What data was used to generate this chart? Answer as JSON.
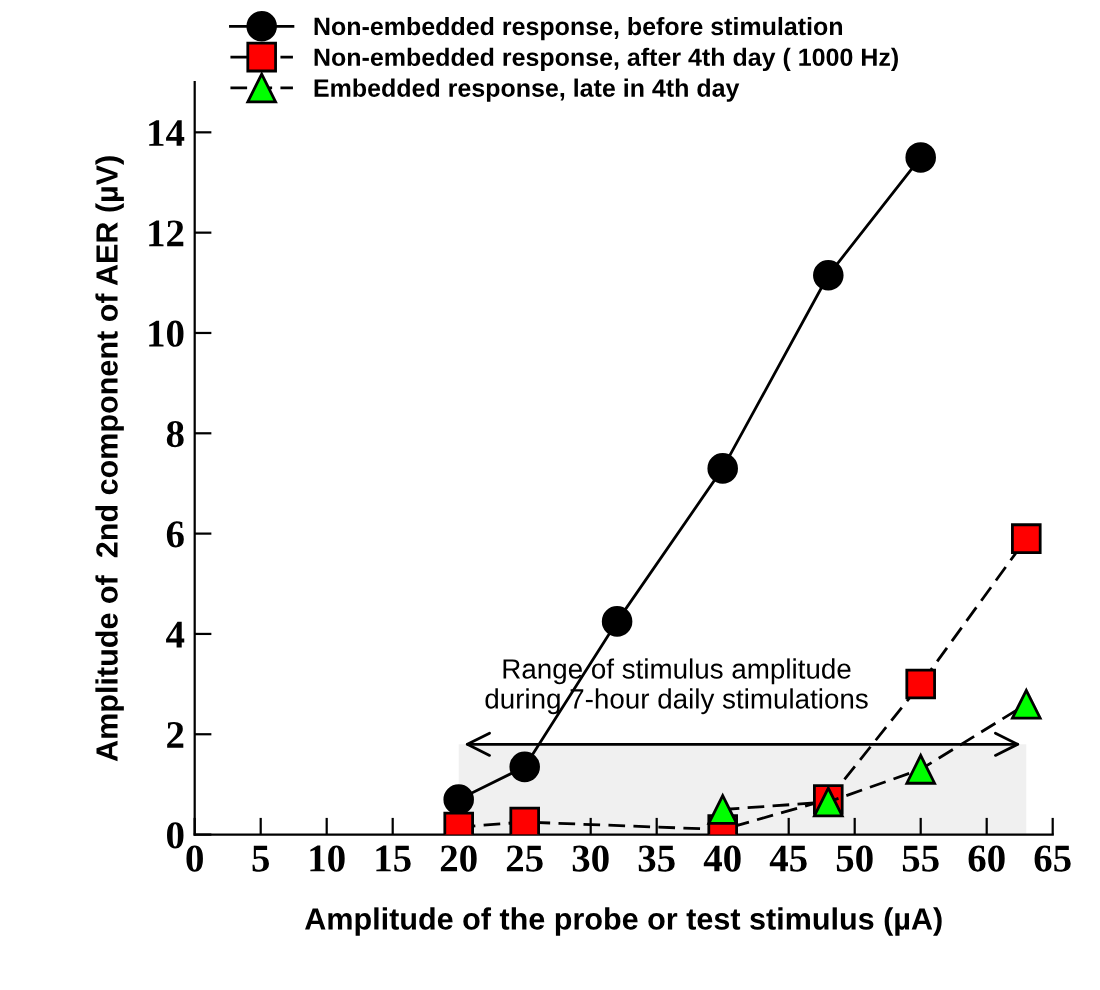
{
  "chart_data": {
    "type": "line",
    "xlabel": "Amplitude of the probe or test stimulus (µA)",
    "ylabel": "Amplitude of  2nd component of AER (µV)",
    "xlim": [
      0,
      65
    ],
    "xticks": [
      0,
      5,
      10,
      15,
      20,
      25,
      30,
      35,
      40,
      45,
      50,
      55,
      60,
      65
    ],
    "ylim": [
      0,
      15
    ],
    "yticks": [
      0,
      2,
      4,
      6,
      8,
      10,
      12,
      14
    ],
    "series": [
      {
        "name": "Non-embedded response, before stimulation",
        "color": "#000000",
        "marker": "circle",
        "line_style": "solid",
        "x": [
          20,
          25,
          32,
          40,
          48,
          55
        ],
        "values": [
          0.7,
          1.35,
          4.25,
          7.3,
          11.15,
          13.5
        ]
      },
      {
        "name": "Non-embedded response, after 4th day ( 1000 Hz)",
        "color": "#ff0000",
        "marker": "square",
        "line_style": "dashed",
        "x": [
          20,
          25,
          40,
          48,
          55,
          63
        ],
        "values": [
          0.15,
          0.25,
          0.1,
          0.7,
          3.0,
          5.9
        ]
      },
      {
        "name": "Embedded response, late in 4th day",
        "color": "#00ff00",
        "marker": "triangle",
        "line_style": "dashed",
        "x": [
          40,
          48,
          55,
          63
        ],
        "values": [
          0.5,
          0.65,
          1.3,
          2.6
        ]
      }
    ],
    "bands": [
      {
        "axis": "x",
        "from": 20,
        "to": 63,
        "label": "Range of stimulus amplitude\nduring 7-hour daily stimulations"
      }
    ],
    "legend": "top left",
    "grid": false
  }
}
